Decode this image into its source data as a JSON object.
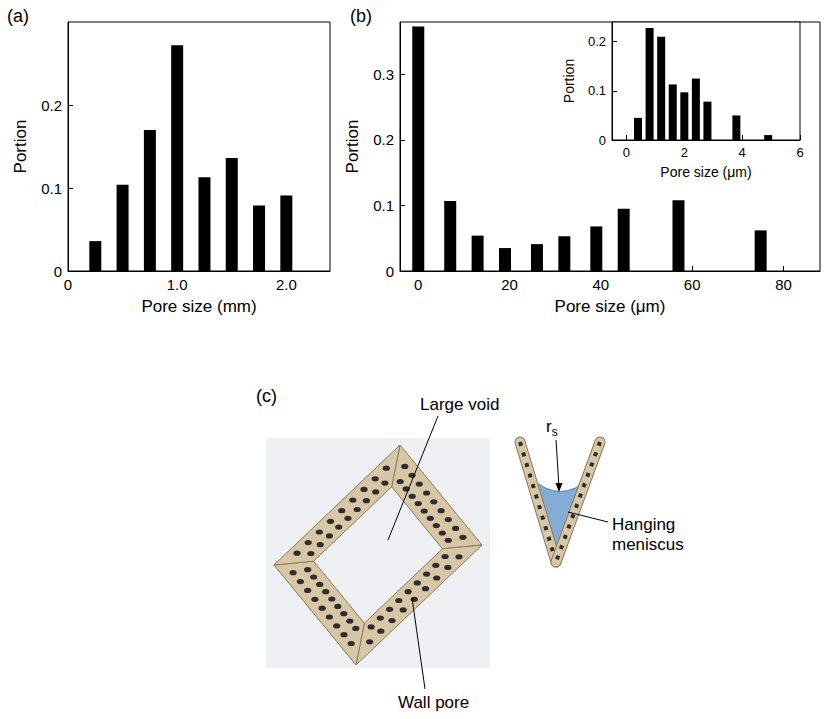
{
  "chart_data": [
    {
      "type": "bar",
      "title": "(a)",
      "xlabel": "Pore size (mm)",
      "ylabel": "Portion",
      "x": [
        0.25,
        0.5,
        0.75,
        1.0,
        1.25,
        1.5,
        1.75,
        2.0
      ],
      "values": [
        0.036,
        0.104,
        0.17,
        0.272,
        0.113,
        0.136,
        0.079,
        0.091
      ],
      "color": "#000000",
      "xlim": [
        0,
        2.4
      ],
      "xticks": [
        0,
        {
          "value": 1,
          "label": "1.0"
        },
        {
          "value": 2,
          "label": "2.0"
        }
      ],
      "ylim": [
        0,
        0.3
      ],
      "yticks": [
        0,
        0.1,
        0.2
      ],
      "grid": false
    },
    {
      "type": "bar",
      "title": "(b)",
      "xlabel": "Pore size (μm)",
      "ylabel": "Portion",
      "x": [
        0,
        7,
        13,
        19,
        26,
        32,
        39,
        45,
        57,
        75
      ],
      "values": [
        0.373,
        0.107,
        0.054,
        0.035,
        0.041,
        0.053,
        0.068,
        0.095,
        0.108,
        0.062
      ],
      "color": "#000000",
      "xlim": [
        -4,
        88
      ],
      "xticks": [
        0,
        20,
        40,
        60,
        80
      ],
      "ylim": [
        0,
        0.38
      ],
      "yticks": [
        0,
        0.1,
        0.2,
        0.3
      ],
      "grid": false
    },
    {
      "type": "bar",
      "xlabel": "Pore size (μm)",
      "ylabel": "Portion",
      "x": [
        0.4,
        0.8,
        1.2,
        1.6,
        2.0,
        2.4,
        2.8,
        3.8,
        4.9
      ],
      "values": [
        0.045,
        0.228,
        0.21,
        0.113,
        0.097,
        0.125,
        0.078,
        0.05,
        0.01
      ],
      "color": "#000000",
      "xlim": [
        -0.5,
        6
      ],
      "xticks": [
        0,
        2,
        4,
        6
      ],
      "ylim": [
        0,
        0.24
      ],
      "yticks": [
        0,
        0.1,
        0.2
      ],
      "grid": false
    }
  ],
  "diagram": {
    "label": "(c)",
    "large_void": "Large void",
    "wall_pore": "Wall pore",
    "meniscus": "Hanging meniscus",
    "radius": "r",
    "radius_subscript": "s"
  }
}
